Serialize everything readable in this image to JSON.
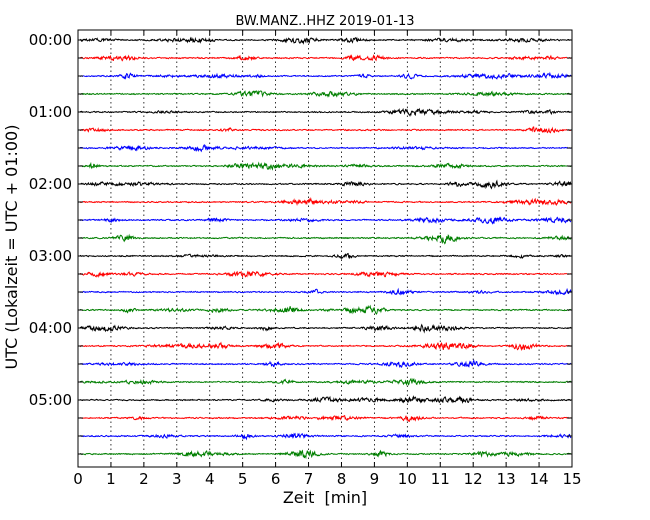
{
  "chart_data": {
    "type": "line",
    "title": "BW.MANZ..HHZ 2019-01-13",
    "xlabel": "Zeit  [min]",
    "ylabel": "UTC (Lokalzeit = UTC + 01:00)",
    "xlim": [
      0,
      15
    ],
    "x_ticks": [
      "0",
      "1",
      "2",
      "3",
      "4",
      "5",
      "6",
      "7",
      "8",
      "9",
      "10",
      "11",
      "12",
      "13",
      "14",
      "15"
    ],
    "y_ticks": [
      "00:00",
      "01:00",
      "02:00",
      "03:00",
      "04:00",
      "05:00"
    ],
    "trace_count": 24,
    "trace_interval_minutes": 15,
    "trace_colors": [
      "#000000",
      "#ff0000",
      "#0000ff",
      "#007f00"
    ],
    "vertical_grid": "dotted",
    "legend": "none"
  }
}
